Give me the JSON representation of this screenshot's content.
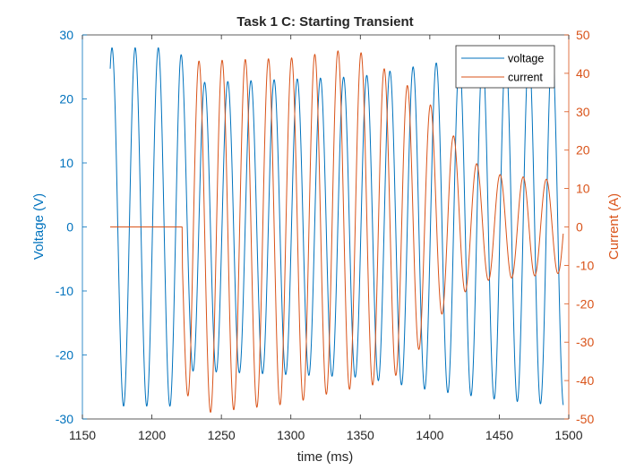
{
  "chart_data": {
    "type": "line",
    "title": "Task 1 C: Starting Transient",
    "xlabel": "time (ms)",
    "ylabel_left": "Voltage (V)",
    "ylabel_right": "Current (A)",
    "xlim": [
      1150,
      1500
    ],
    "ylim_left": [
      -30,
      30
    ],
    "ylim_right": [
      -50,
      50
    ],
    "xticks": [
      "1150",
      "1200",
      "1250",
      "1300",
      "1350",
      "1400",
      "1450",
      "1500"
    ],
    "yticks_left": [
      "30",
      "20",
      "10",
      "0",
      "-10",
      "-20",
      "-30"
    ],
    "yticks_right": [
      "50",
      "40",
      "30",
      "20",
      "10",
      "0",
      "-10",
      "-20",
      "-30",
      "-40",
      "-50"
    ],
    "grid": false,
    "legend_position": "top-right",
    "colors": {
      "voltage": "#0072BD",
      "current": "#D95319",
      "axis": "#262626"
    },
    "series": [
      {
        "name": "voltage",
        "axis": "left",
        "start_time": 1170,
        "end_time": 1496,
        "frequency_hz": 60,
        "phase_deg": 62,
        "amplitude_points": [
          [
            1170,
            28
          ],
          [
            1220,
            28
          ],
          [
            1226,
            22.5
          ],
          [
            1350,
            23.5
          ],
          [
            1400,
            25.5
          ],
          [
            1450,
            27
          ],
          [
            1496,
            28
          ]
        ]
      },
      {
        "name": "current",
        "axis": "right",
        "start_time": 1170,
        "end_time": 1496,
        "zero_until": 1222,
        "frequency_hz": 60,
        "phase_deg": 150,
        "amplitude_points": [
          [
            1222,
            33
          ],
          [
            1228,
            46
          ],
          [
            1300,
            45
          ],
          [
            1350,
            44
          ],
          [
            1380,
            38
          ],
          [
            1400,
            30
          ],
          [
            1420,
            20
          ],
          [
            1440,
            14
          ],
          [
            1496,
            12
          ]
        ],
        "offset_points": [
          [
            1222,
            -3
          ],
          [
            1300,
            -1
          ],
          [
            1340,
            2
          ],
          [
            1380,
            0
          ],
          [
            1410,
            3
          ],
          [
            1440,
            0
          ],
          [
            1496,
            0
          ]
        ]
      }
    ]
  }
}
